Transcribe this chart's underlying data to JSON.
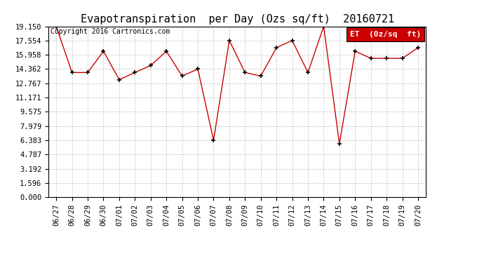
{
  "title": "Evapotranspiration  per Day (Ozs sq/ft)  20160721",
  "copyright": "Copyright 2016 Cartronics.com",
  "legend_label": "ET  (0z/sq  ft)",
  "legend_bg": "#cc0000",
  "legend_text_color": "#ffffff",
  "x_labels": [
    "06/27",
    "06/28",
    "06/29",
    "06/30",
    "07/01",
    "07/02",
    "07/03",
    "07/04",
    "07/05",
    "07/06",
    "07/07",
    "07/08",
    "07/09",
    "07/10",
    "07/11",
    "07/12",
    "07/13",
    "07/14",
    "07/15",
    "07/16",
    "07/17",
    "07/18",
    "07/19",
    "07/20"
  ],
  "y_values": [
    19.15,
    13.975,
    13.975,
    16.362,
    13.175,
    13.975,
    14.76,
    16.362,
    13.575,
    14.362,
    6.383,
    17.554,
    13.975,
    13.575,
    16.76,
    17.554,
    13.975,
    19.15,
    5.98,
    16.362,
    15.56,
    15.56,
    15.56,
    16.76
  ],
  "y_ticks": [
    0.0,
    1.596,
    3.192,
    4.787,
    6.383,
    7.979,
    9.575,
    11.171,
    12.767,
    14.362,
    15.958,
    17.554,
    19.15
  ],
  "y_min": 0.0,
  "y_max": 19.15,
  "line_color": "#cc0000",
  "marker_color": "#000000",
  "bg_color": "#ffffff",
  "grid_color": "#bbbbbb",
  "title_fontsize": 11,
  "copyright_fontsize": 7,
  "tick_fontsize": 7.5,
  "legend_fontsize": 8
}
